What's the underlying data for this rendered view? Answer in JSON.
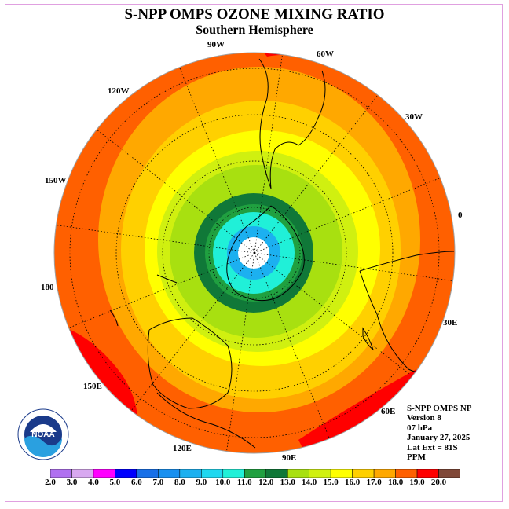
{
  "title": "S-NPP OMPS OZONE MIXING RATIO",
  "subtitle": "Southern Hemisphere",
  "longitude_labels": {
    "w90": "90W",
    "w60": "60W",
    "w30": "30W",
    "e0": "0",
    "w120": "120W",
    "w150": "150W",
    "l180": "180",
    "e30": "30E",
    "e60": "60E",
    "e90": "90E",
    "e120": "120E",
    "e150": "150E"
  },
  "info": {
    "product": "S-NPP OMPS NP",
    "version": "Version 8",
    "level": "07 hPa",
    "date": "January 27, 2025",
    "lat_ext": "Lat Ext = 81S",
    "units": "PPM"
  },
  "colorbar": {
    "labels": [
      "2.0",
      "3.0",
      "4.0",
      "5.0",
      "6.0",
      "7.0",
      "8.0",
      "9.0",
      "10.0",
      "11.0",
      "12.0",
      "13.0",
      "14.0",
      "15.0",
      "16.0",
      "17.0",
      "18.0",
      "19.0",
      "20.0"
    ],
    "colors": [
      "#b070f0",
      "#d8a8f0",
      "#ff00ff",
      "#0000ff",
      "#1870e8",
      "#1890f0",
      "#1cb0f0",
      "#20d8f0",
      "#20f0d8",
      "#20a040",
      "#107838",
      "#a8e010",
      "#d0f010",
      "#ffff00",
      "#ffd000",
      "#ffa800",
      "#ff6000",
      "#ff0000",
      "#804838"
    ]
  },
  "map": {
    "colors": {
      "c18": "#ff6000",
      "c17": "#ffa800",
      "c16": "#ffd000",
      "c15": "#ffff00",
      "c14": "#d0f010",
      "c13": "#a8e010",
      "c12": "#107838",
      "c11": "#20a040",
      "c10": "#20f0d8",
      "c9": "#1cb0f0",
      "c8": "#ffffff",
      "c19": "#ff0000"
    }
  },
  "logo": {
    "text": "NOAA"
  }
}
